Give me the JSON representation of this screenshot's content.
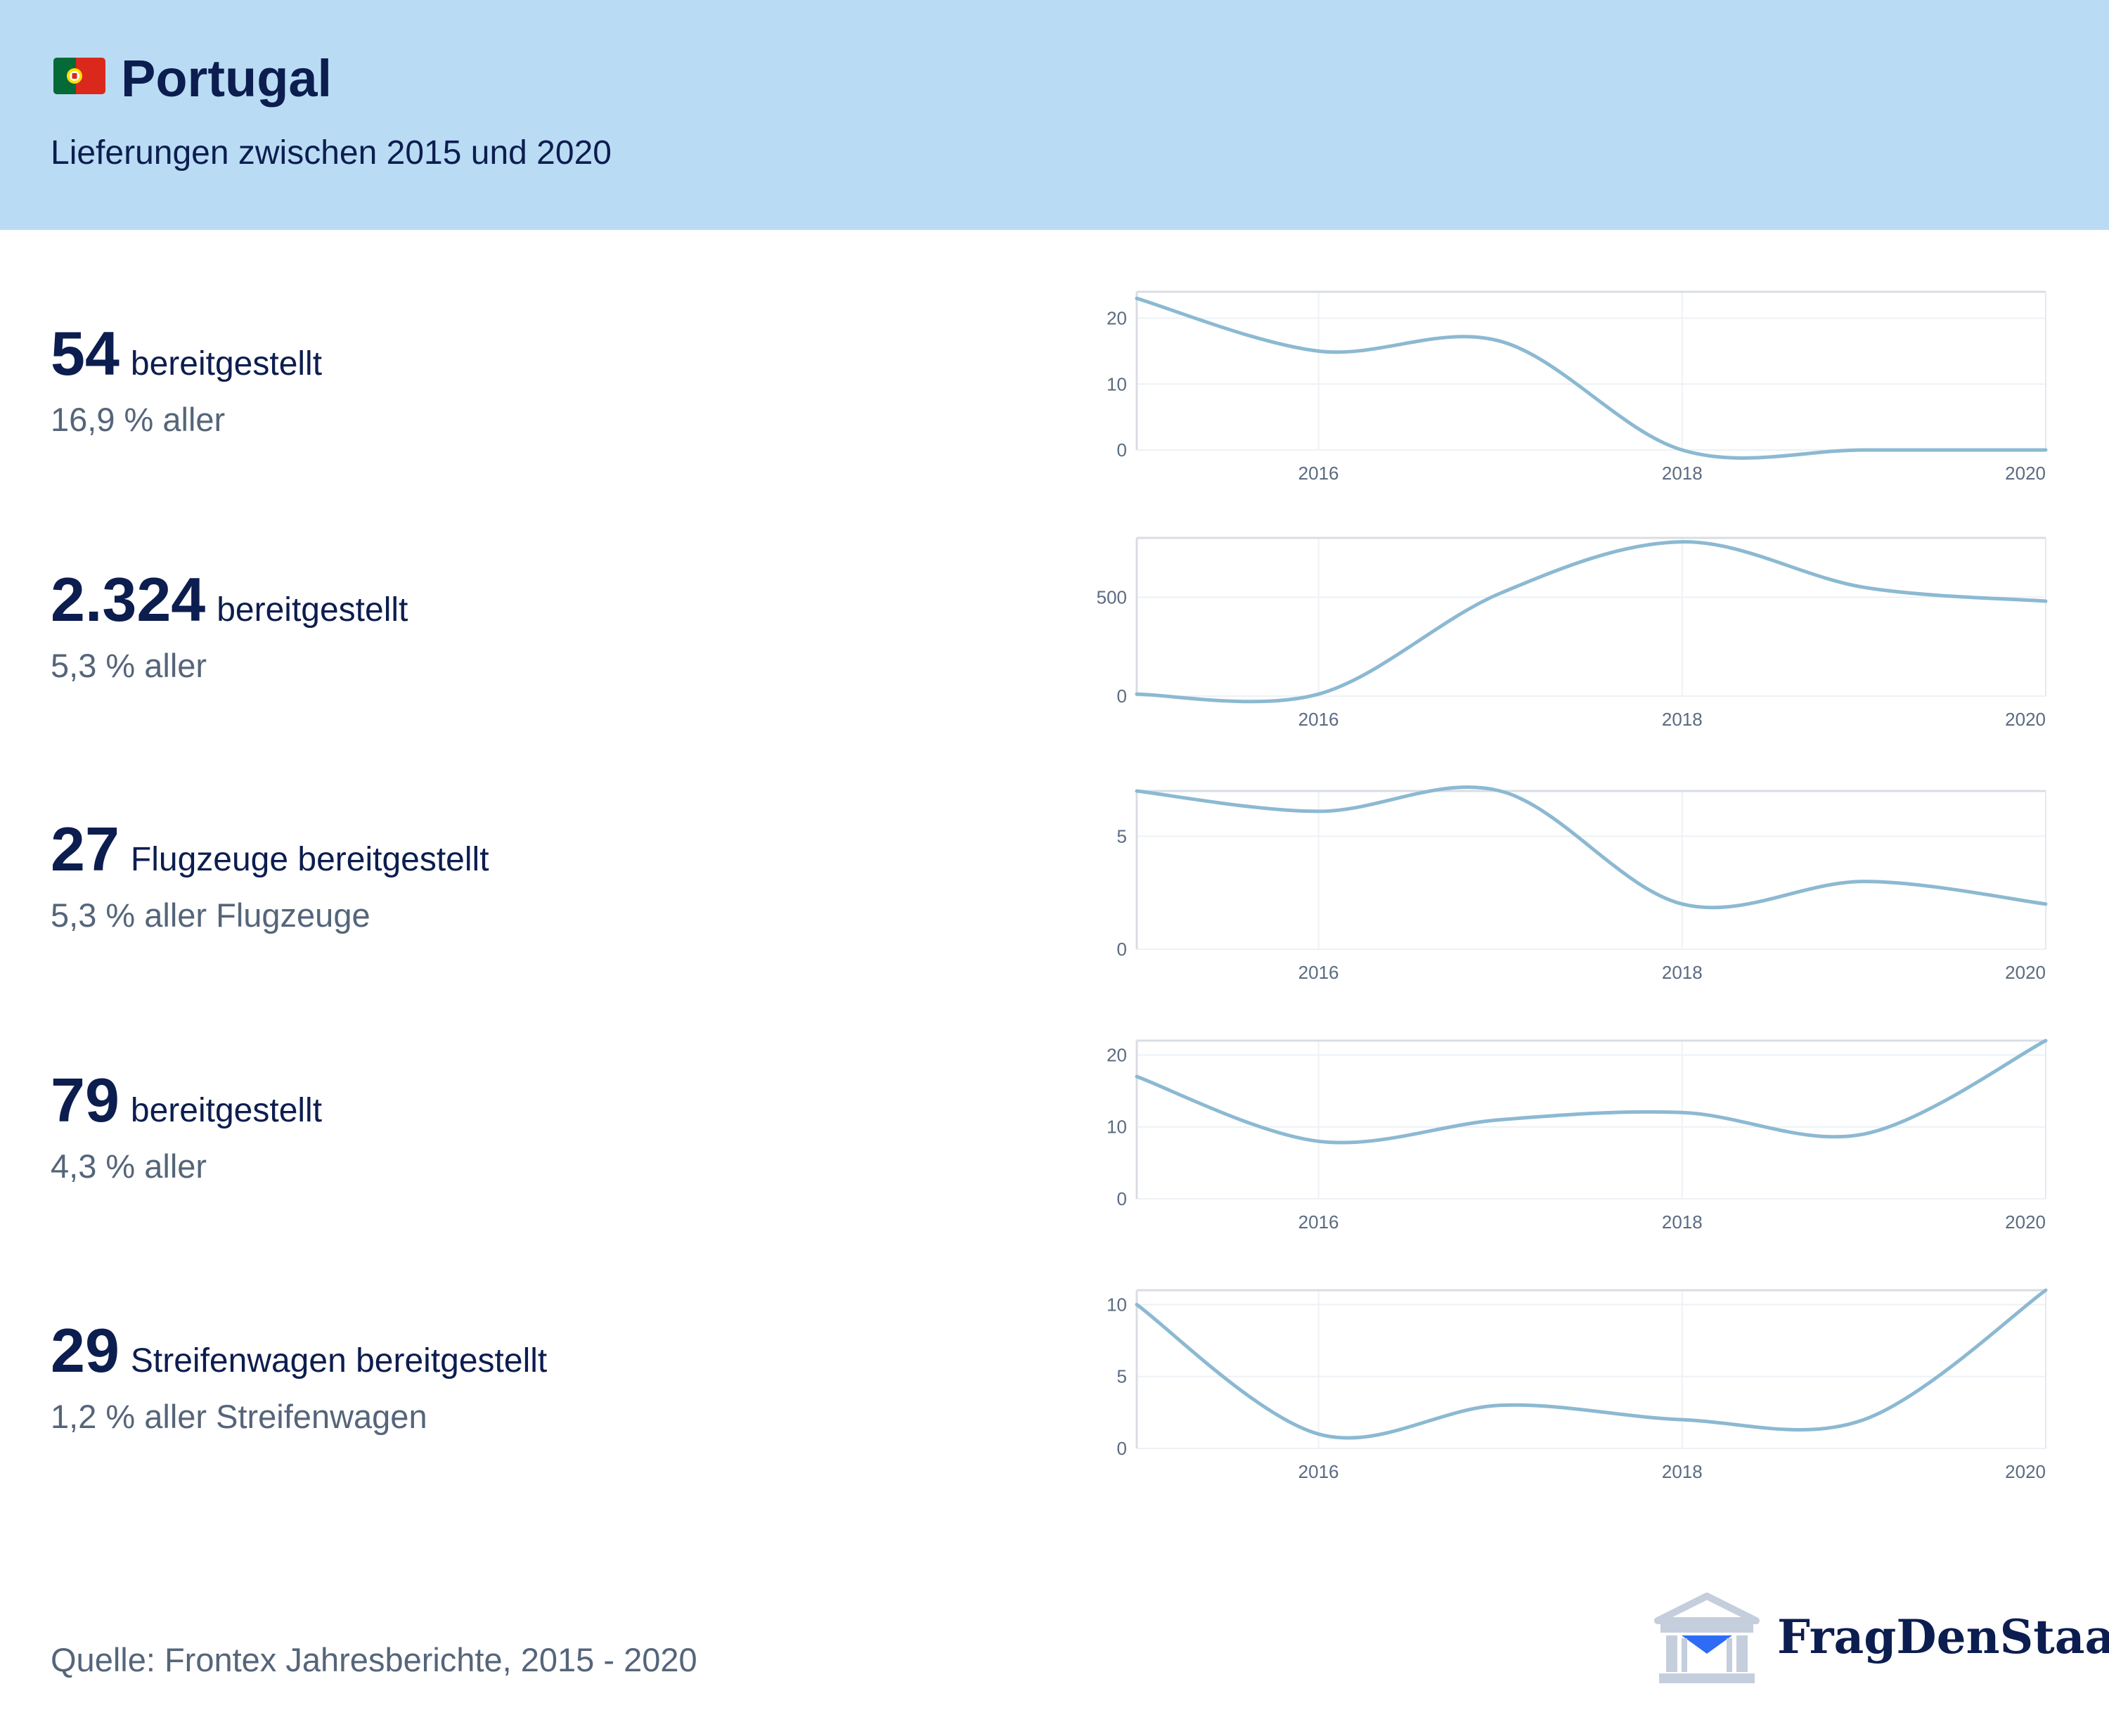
{
  "header": {
    "title": "Portugal",
    "subtitle": "Lieferungen zwischen 2015 und 2020",
    "flag_icon": "portugal-flag-icon",
    "background": "#b9dcf4"
  },
  "stats": [
    {
      "value": "54",
      "label": "bereitgestellt",
      "share": "16,9 % aller"
    },
    {
      "value": "2.324",
      "label": "bereitgestellt",
      "share": "5,3 % aller"
    },
    {
      "value": "27",
      "label": "Flugzeuge bereitgestellt",
      "share": "5,3 % aller Flugzeuge"
    },
    {
      "value": "79",
      "label": "bereitgestellt",
      "share": "4,3 % aller"
    },
    {
      "value": "29",
      "label": "Streifenwagen bereitgestellt",
      "share": "1,2 % aller Streifenwagen"
    }
  ],
  "chart_data": [
    {
      "type": "line",
      "x": [
        2015,
        2016,
        2017,
        2018,
        2019,
        2020
      ],
      "values": [
        23,
        15,
        16.5,
        0,
        0,
        0
      ],
      "xlim": [
        2015,
        2020
      ],
      "ylim": [
        0,
        24
      ],
      "y_ticks": [
        0,
        10,
        20
      ],
      "x_ticks": [
        2016,
        2018,
        2020
      ],
      "grid": true,
      "color": "#8cb9d2"
    },
    {
      "type": "line",
      "x": [
        2015,
        2016,
        2017,
        2018,
        2019,
        2020
      ],
      "values": [
        10,
        10,
        520,
        780,
        550,
        480
      ],
      "xlim": [
        2015,
        2020
      ],
      "ylim": [
        0,
        800
      ],
      "y_ticks": [
        0,
        500
      ],
      "x_ticks": [
        2016,
        2018,
        2020
      ],
      "grid": true,
      "color": "#8cb9d2"
    },
    {
      "type": "line",
      "x": [
        2015,
        2016,
        2017,
        2018,
        2019,
        2020
      ],
      "values": [
        7,
        6.1,
        7,
        2,
        3,
        2
      ],
      "xlim": [
        2015,
        2020
      ],
      "ylim": [
        0,
        7
      ],
      "y_ticks": [
        0,
        5
      ],
      "x_ticks": [
        2016,
        2018,
        2020
      ],
      "grid": true,
      "color": "#8cb9d2"
    },
    {
      "type": "line",
      "x": [
        2015,
        2016,
        2017,
        2018,
        2019,
        2020
      ],
      "values": [
        17,
        8,
        11,
        12,
        9,
        22
      ],
      "xlim": [
        2015,
        2020
      ],
      "ylim": [
        0,
        22
      ],
      "y_ticks": [
        0,
        10,
        20
      ],
      "x_ticks": [
        2016,
        2018,
        2020
      ],
      "grid": true,
      "color": "#8cb9d2"
    },
    {
      "type": "line",
      "x": [
        2015,
        2016,
        2017,
        2018,
        2019,
        2020
      ],
      "values": [
        10,
        1,
        3,
        2,
        2,
        11
      ],
      "xlim": [
        2015,
        2020
      ],
      "ylim": [
        0,
        11
      ],
      "y_ticks": [
        0,
        5,
        10
      ],
      "x_ticks": [
        2016,
        2018,
        2020
      ],
      "grid": true,
      "color": "#8cb9d2"
    }
  ],
  "footer": {
    "source": "Quelle: Frontex Jahresberichte, 2015 - 2020",
    "logo_text": "FragDenStaat",
    "logo_icon": "building-mail-icon"
  }
}
